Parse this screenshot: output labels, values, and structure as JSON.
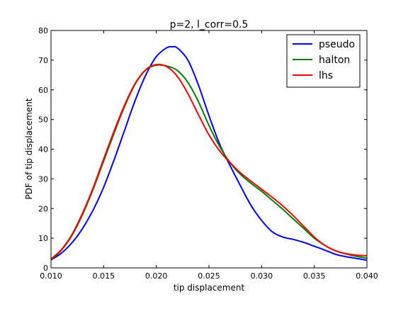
{
  "chart_data": {
    "type": "line",
    "title": "p=2, l_corr=0.5",
    "xlabel": "tip displacement",
    "ylabel": "PDF of tip displacement",
    "xlim": [
      0.01,
      0.04
    ],
    "ylim": [
      0,
      80
    ],
    "x_ticks": [
      "0.010",
      "0.015",
      "0.020",
      "0.025",
      "0.030",
      "0.035",
      "0.040"
    ],
    "y_ticks": [
      "0",
      "10",
      "20",
      "30",
      "40",
      "50",
      "60",
      "70",
      "80"
    ],
    "legend_position": "top-right",
    "grid": false,
    "series": [
      {
        "name": "pseudo",
        "color": "#0000ff",
        "x": [
          0.01,
          0.011,
          0.012,
          0.013,
          0.014,
          0.015,
          0.016,
          0.017,
          0.018,
          0.019,
          0.02,
          0.021,
          0.0215,
          0.022,
          0.023,
          0.024,
          0.025,
          0.026,
          0.027,
          0.028,
          0.029,
          0.03,
          0.031,
          0.032,
          0.033,
          0.034,
          0.035,
          0.036,
          0.037,
          0.038,
          0.039,
          0.04
        ],
        "y": [
          2.7,
          5.0,
          8.5,
          13.3,
          19.5,
          27.2,
          36.5,
          46.5,
          56.5,
          65.0,
          71.2,
          74.2,
          74.5,
          74.1,
          70.0,
          61.6,
          51.3,
          41.8,
          34.5,
          27.6,
          21.0,
          16.0,
          12.2,
          10.4,
          9.6,
          8.6,
          7.3,
          6.0,
          4.6,
          3.8,
          3.2,
          2.6
        ]
      },
      {
        "name": "halton",
        "color": "#008000",
        "x": [
          0.01,
          0.011,
          0.012,
          0.013,
          0.014,
          0.015,
          0.016,
          0.017,
          0.018,
          0.019,
          0.02,
          0.021,
          0.022,
          0.023,
          0.024,
          0.025,
          0.026,
          0.027,
          0.028,
          0.029,
          0.03,
          0.031,
          0.032,
          0.033,
          0.034,
          0.035,
          0.036,
          0.037,
          0.038,
          0.039,
          0.04
        ],
        "y": [
          2.7,
          6.0,
          11.0,
          18.0,
          26.5,
          36.0,
          45.5,
          54.5,
          62.0,
          66.7,
          68.3,
          68.0,
          66.5,
          62.5,
          56.0,
          48.0,
          41.0,
          35.5,
          31.5,
          28.5,
          25.8,
          22.8,
          19.8,
          16.5,
          13.3,
          10.0,
          7.6,
          5.8,
          4.7,
          3.9,
          3.3
        ]
      },
      {
        "name": "lhs",
        "color": "#ff0000",
        "x": [
          0.01,
          0.011,
          0.012,
          0.013,
          0.014,
          0.015,
          0.016,
          0.017,
          0.018,
          0.019,
          0.02,
          0.021,
          0.022,
          0.023,
          0.024,
          0.025,
          0.026,
          0.027,
          0.028,
          0.029,
          0.03,
          0.031,
          0.032,
          0.033,
          0.034,
          0.035,
          0.036,
          0.037,
          0.038,
          0.039,
          0.04
        ],
        "y": [
          3.0,
          6.2,
          11.3,
          18.5,
          27.0,
          36.7,
          46.2,
          55.0,
          62.2,
          66.8,
          68.5,
          67.8,
          64.5,
          58.7,
          51.6,
          44.8,
          39.5,
          35.5,
          32.0,
          29.2,
          26.5,
          23.8,
          20.9,
          17.6,
          14.0,
          10.4,
          7.6,
          5.8,
          4.8,
          4.3,
          4.1
        ]
      }
    ]
  }
}
